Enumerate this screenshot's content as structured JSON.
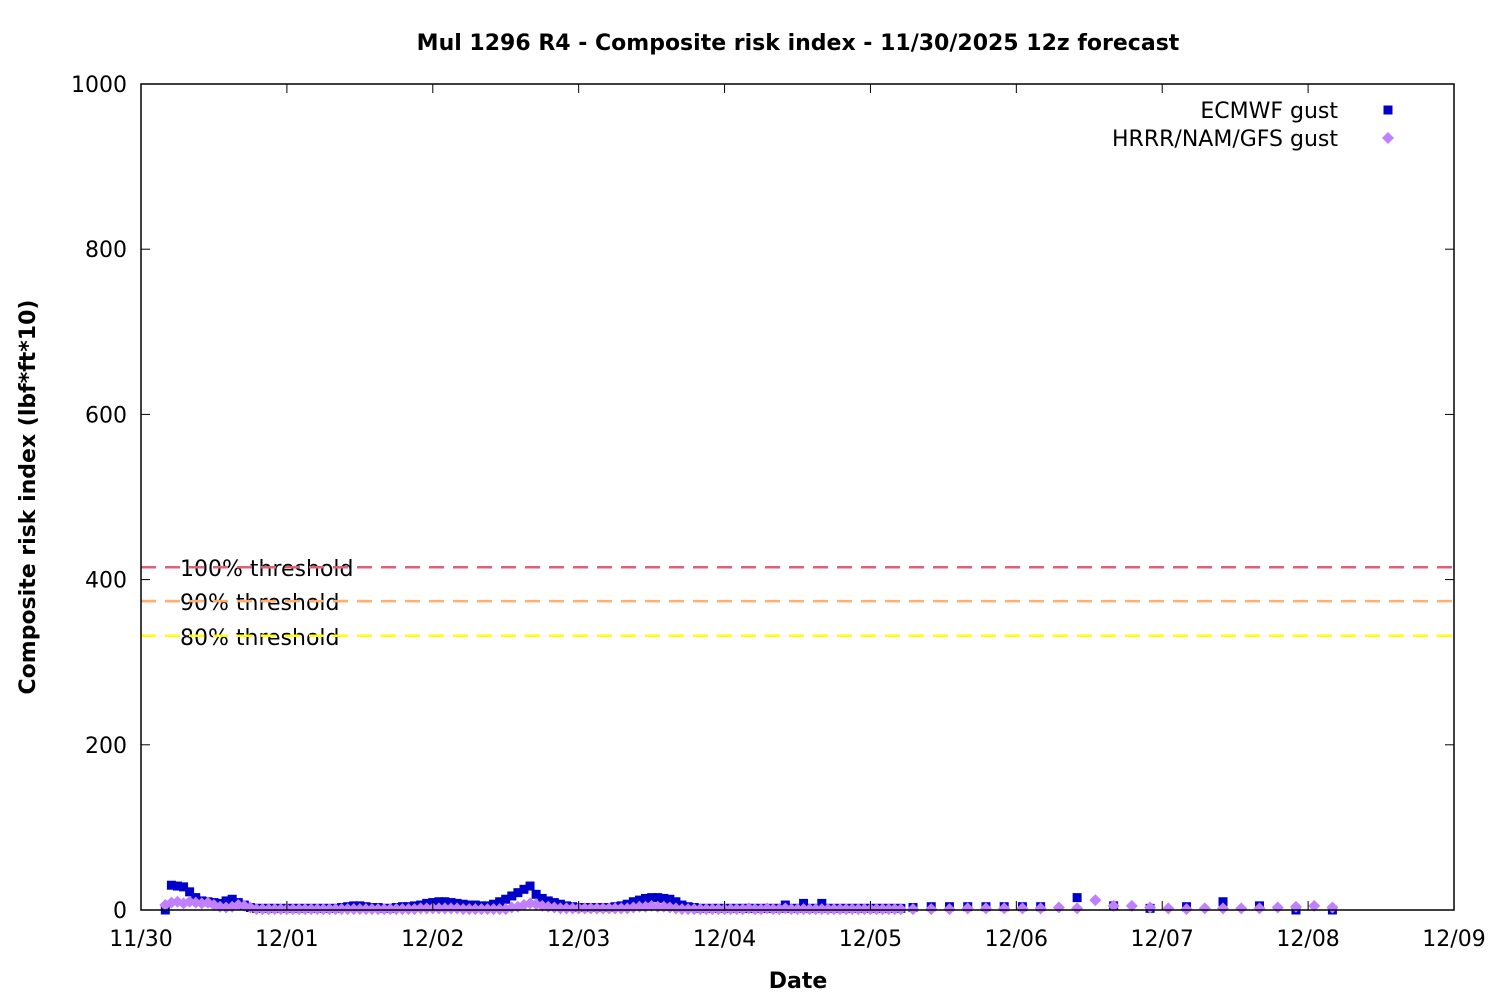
{
  "chart_data": {
    "type": "scatter",
    "title": "Mul 1296 R4 - Composite risk index - 11/30/2025 12z forecast",
    "xlabel": "Date",
    "ylabel": "Composite risk index (lbf*ft*10)",
    "xlim": [
      "11/30 00:00",
      "12/09 00:00"
    ],
    "ylim": [
      0,
      1000
    ],
    "x_ticks": [
      "11/30",
      "12/01",
      "12/02",
      "12/03",
      "12/04",
      "12/05",
      "12/06",
      "12/07",
      "12/08",
      "12/09"
    ],
    "y_ticks": [
      0,
      200,
      400,
      600,
      800,
      1000
    ],
    "grid": false,
    "legend_position": "top-right",
    "thresholds": [
      {
        "label": "100% threshold",
        "value": 415,
        "color": "#e0607a"
      },
      {
        "label": "90% threshold",
        "value": 374,
        "color": "#ffb070"
      },
      {
        "label": "80% threshold",
        "value": 332,
        "color": "#ffff00"
      }
    ],
    "series": [
      {
        "name": "ECMWF gust",
        "marker": "square",
        "color": "#0000cc",
        "segments": [
          {
            "start": "11/30 04:00",
            "interval_hours": 1,
            "values": [
              0,
              30,
              29,
              28,
              22,
              15,
              11,
              10,
              9,
              8,
              11,
              13,
              9,
              6,
              3,
              2,
              2,
              2,
              2,
              2,
              2,
              2,
              2,
              2,
              2,
              2,
              2,
              2,
              2,
              3,
              4,
              5,
              5,
              4,
              3,
              3,
              2,
              2,
              3,
              4,
              4,
              5,
              6,
              8,
              9,
              10,
              10,
              9,
              8,
              7,
              6,
              6,
              5,
              5,
              7,
              10,
              13,
              17,
              21,
              25,
              29,
              19,
              14,
              11,
              9,
              7,
              5,
              4,
              3,
              3,
              3,
              3,
              3,
              3,
              4,
              5,
              7,
              10,
              12,
              14,
              15,
              15,
              14,
              13,
              10,
              6,
              4,
              3,
              2,
              2,
              2,
              2,
              2,
              2,
              2,
              2,
              2,
              2,
              2,
              2,
              2,
              2,
              6,
              2,
              2,
              8,
              2,
              2,
              8,
              2,
              2,
              2,
              2,
              2,
              2,
              2,
              2,
              2,
              2,
              2,
              2,
              2
            ]
          },
          {
            "start": "12/05 07:00",
            "interval_hours": 3,
            "values": [
              3,
              4,
              4,
              4,
              4,
              4,
              4,
              4
            ]
          },
          {
            "start": "12/06 10:00",
            "interval_hours": 6,
            "values": [
              15,
              5,
              2,
              4,
              10,
              5,
              0,
              0
            ]
          }
        ]
      },
      {
        "name": "HRRR/NAM/GFS gust",
        "marker": "diamond",
        "color": "#c080ff",
        "segments": [
          {
            "start": "11/30 04:00",
            "interval_hours": 1,
            "values": [
              6,
              9,
              10,
              8,
              10,
              9,
              8,
              9,
              6,
              4,
              3,
              4,
              6,
              5,
              3,
              1,
              1,
              1,
              1,
              1,
              1,
              1,
              1,
              1,
              1,
              1,
              1,
              1,
              1,
              1,
              1,
              1,
              1,
              1,
              1,
              1,
              1,
              1,
              1,
              1,
              1,
              1,
              2,
              2,
              2,
              2,
              2,
              2,
              2,
              1,
              1,
              1,
              1,
              1,
              1,
              1,
              1,
              3,
              4,
              6,
              8,
              7,
              5,
              4,
              3,
              2,
              2,
              2,
              2,
              2,
              2,
              2,
              2,
              2,
              2,
              2,
              2,
              3,
              4,
              4,
              5,
              4,
              4,
              3,
              2,
              1,
              1,
              1,
              1,
              1,
              1,
              1,
              1,
              1,
              1,
              1,
              2,
              1,
              1,
              2,
              1,
              1,
              2,
              1,
              1,
              1,
              1,
              1,
              1,
              1,
              1,
              1,
              1,
              1,
              1,
              1,
              1,
              1,
              1,
              1,
              1,
              1
            ]
          },
          {
            "start": "12/05 07:00",
            "interval_hours": 3,
            "values": [
              1,
              1,
              1,
              2,
              2,
              2,
              2,
              2,
              3,
              2,
              12,
              5,
              5,
              3,
              2,
              1,
              2,
              2,
              2,
              2,
              3,
              4,
              5,
              3
            ]
          }
        ]
      }
    ]
  }
}
